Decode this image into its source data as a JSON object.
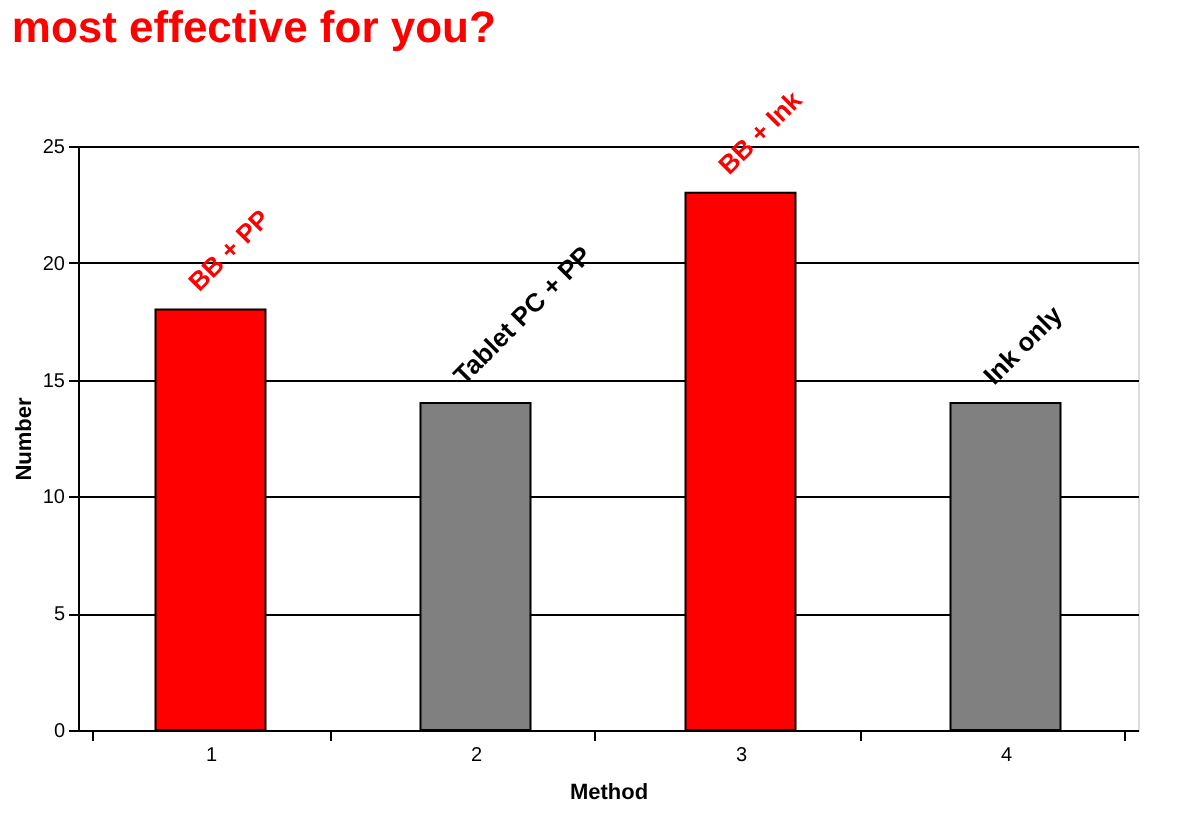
{
  "chart_data": {
    "type": "bar",
    "title": "most effective for you?",
    "xlabel": "Method",
    "ylabel": "Number",
    "categories": [
      "1",
      "2",
      "3",
      "4"
    ],
    "values": [
      18,
      14,
      23,
      14
    ],
    "colors": [
      "#ff0000",
      "#808080",
      "#ff0000",
      "#808080"
    ],
    "ylim": [
      0,
      25
    ],
    "yticks": [
      0,
      5,
      10,
      15,
      20,
      25
    ],
    "grid": "y",
    "annotations": [
      {
        "text": "BB + PP",
        "x": "1",
        "y": 18
      },
      {
        "text": "Tablet PC + PP",
        "x": "2",
        "y": 14
      },
      {
        "text": "BB + Ink",
        "x": "3",
        "y": 23
      },
      {
        "text": "Ink only",
        "x": "4",
        "y": 14
      }
    ]
  }
}
